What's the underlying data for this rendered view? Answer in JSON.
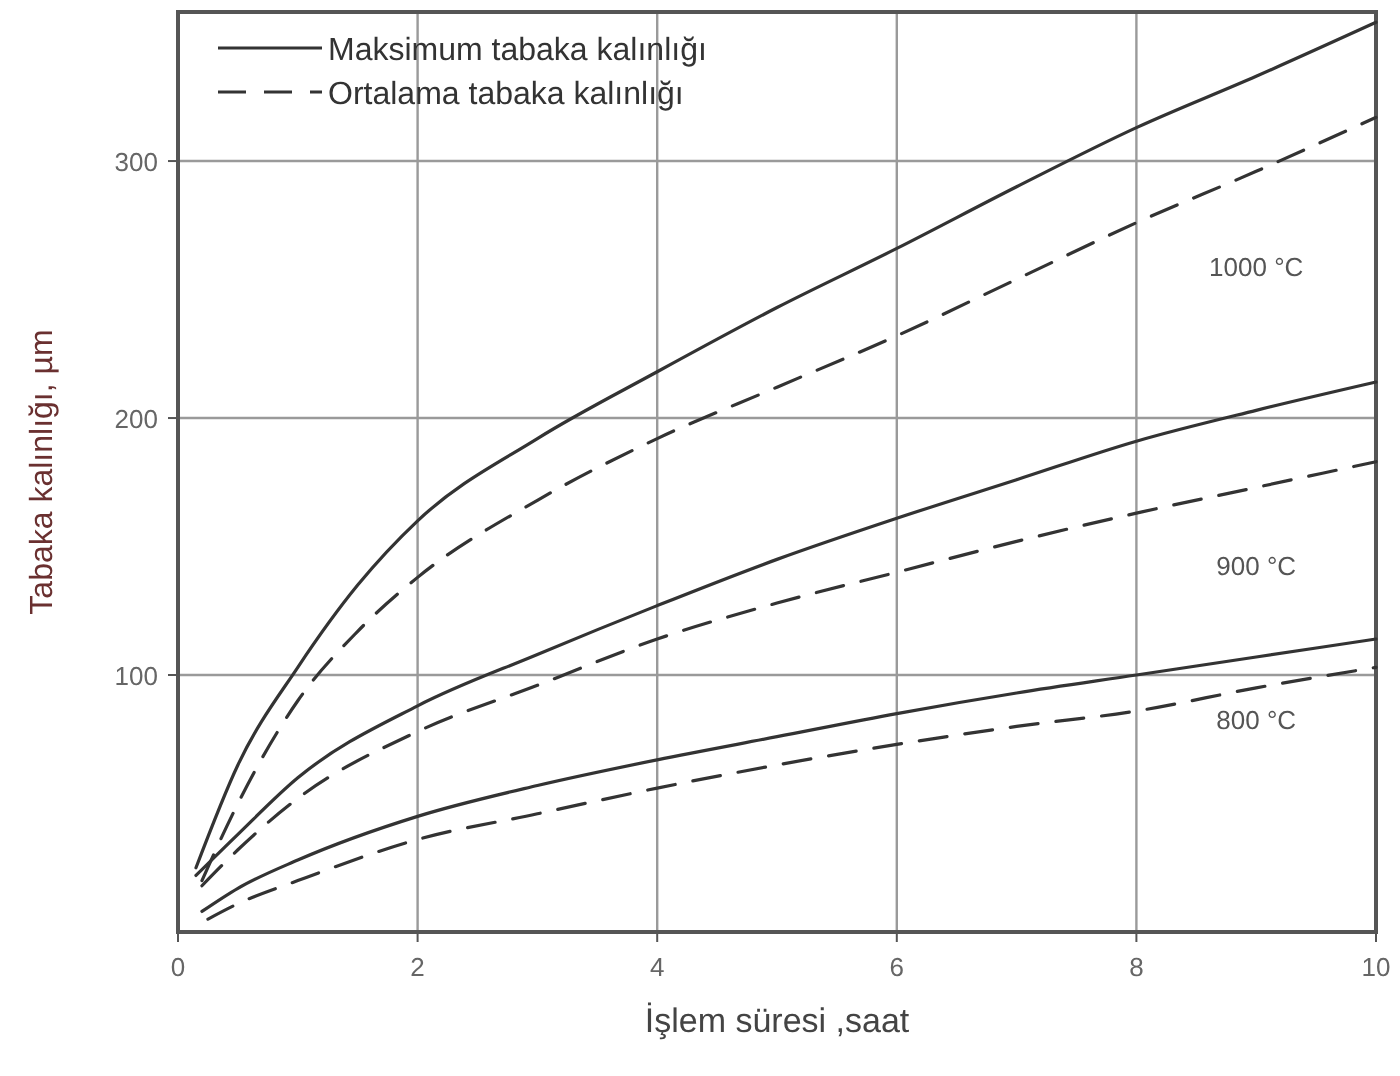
{
  "chart_data": {
    "type": "line",
    "xlabel": "İşlem süresi ,saat",
    "ylabel": "Tabaka kalınlığı, µm",
    "xlim": [
      0,
      10
    ],
    "ylim": [
      0,
      358
    ],
    "xticks": [
      0,
      2,
      4,
      6,
      8,
      10
    ],
    "yticks": [
      100,
      200,
      300
    ],
    "grid": true,
    "legend": "top left",
    "series": [
      {
        "name": "Maksimum tabaka kalınlığı",
        "color": "#333333",
        "line_style": "solid",
        "x": [
          0.15,
          0.5,
          1,
          1.5,
          2,
          3,
          4,
          5,
          6,
          7,
          8,
          9,
          10
        ],
        "values": [
          25,
          65,
          103,
          135,
          160,
          192,
          218,
          243,
          266,
          290,
          313,
          333,
          354
        ]
      },
      {
        "name": "Ortalama tabaka kalınlığı",
        "color": "#333333",
        "line_style": "dashed",
        "x": [
          0.2,
          0.5,
          1,
          1.5,
          2,
          3,
          4,
          5,
          6,
          7,
          8,
          9,
          10
        ],
        "values": [
          20,
          50,
          90,
          117,
          138,
          168,
          192,
          212,
          232,
          254,
          276,
          296,
          317
        ]
      },
      {
        "color": "#333333",
        "line_style": "solid",
        "x": [
          0.15,
          0.5,
          1,
          2,
          3,
          4,
          5,
          6,
          7,
          8,
          9,
          10
        ],
        "values": [
          22,
          38,
          60,
          88,
          108,
          127,
          145,
          161,
          176,
          191,
          203,
          214
        ]
      },
      {
        "color": "#333333",
        "line_style": "dashed",
        "x": [
          0.2,
          0.5,
          1,
          2,
          3,
          4,
          5,
          6,
          7,
          8,
          9,
          10
        ],
        "values": [
          18,
          32,
          52,
          78,
          96,
          114,
          128,
          140,
          152,
          163,
          173,
          183
        ]
      },
      {
        "color": "#333333",
        "line_style": "solid",
        "x": [
          0.2,
          0.5,
          1,
          2,
          3,
          4,
          5,
          6,
          7,
          8,
          9,
          10
        ],
        "values": [
          8,
          17,
          28,
          45,
          57,
          67,
          76,
          85,
          93,
          100,
          107,
          114
        ]
      },
      {
        "color": "#333333",
        "line_style": "dashed",
        "x": [
          0.25,
          0.5,
          1,
          2,
          3,
          4,
          5,
          6,
          7,
          8,
          9,
          10
        ],
        "values": [
          5,
          11,
          20,
          36,
          46,
          56,
          65,
          73,
          80,
          86,
          95,
          103
        ]
      }
    ],
    "annotations": [
      "1000 °C",
      "900 °C",
      "800 °C"
    ]
  }
}
